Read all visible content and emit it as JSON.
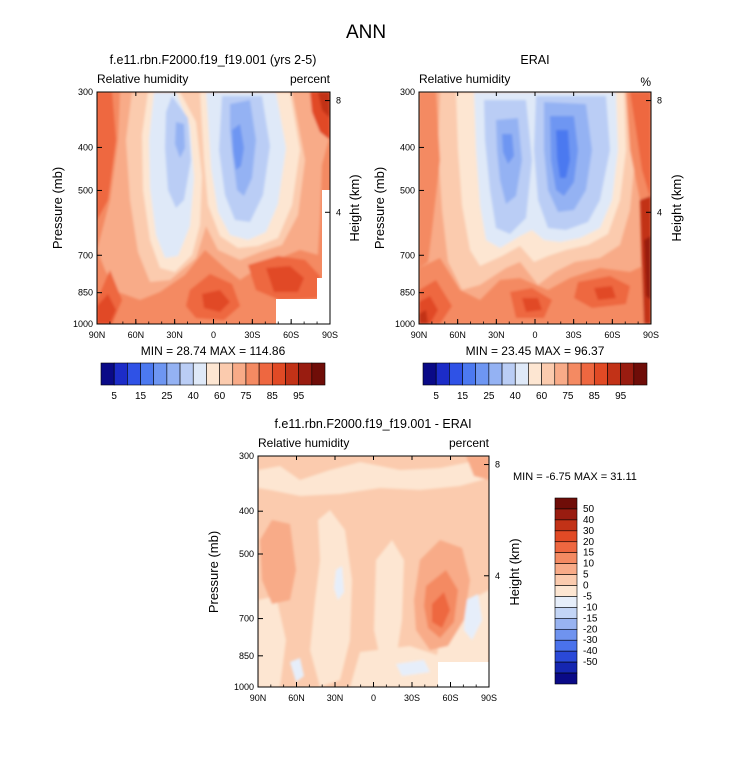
{
  "figure": {
    "title": "ANN"
  },
  "colors": {
    "abs": [
      "#0a0a87",
      "#1c2cc8",
      "#2f52e6",
      "#4c79f0",
      "#6e96f2",
      "#94b2f3",
      "#bacdf5",
      "#dfe9f8",
      "#fde6d2",
      "#fbcbae",
      "#f8ab88",
      "#f48a62",
      "#ee6740",
      "#e14a25",
      "#c23217",
      "#991c10",
      "#6f0d08"
    ],
    "diff": [
      "#0a0a87",
      "#1526b0",
      "#2a49d8",
      "#4a72ec",
      "#6f93ef",
      "#98b3f1",
      "#c3d5f6",
      "#e6eefa",
      "#fde6d2",
      "#fbcbae",
      "#f8ab88",
      "#f48a62",
      "#ee6740",
      "#e14a25",
      "#c23217",
      "#991c10",
      "#6f0d08"
    ]
  },
  "chart_data": [
    {
      "type": "heatmap",
      "title": "f.e11.rbn.F2000.f19_f19.001 (yrs 2-5)",
      "left_label": "Relative humidity",
      "right_label": "percent",
      "xlabel": "",
      "ylabel": "Pressure (mb)",
      "y2label": "Height (km)",
      "x_ticks": [
        "90N",
        "60N",
        "30N",
        "0",
        "30S",
        "60S",
        "90S"
      ],
      "y_ticks": [
        "300",
        "400",
        "500",
        "700",
        "850",
        "1000"
      ],
      "y_tick_values": [
        300,
        400,
        500,
        700,
        850,
        1000
      ],
      "y2_ticks": [
        "8",
        "4"
      ],
      "y2_tick_values": [
        8,
        4
      ],
      "ylim": [
        300,
        1000
      ],
      "xlim": [
        90,
        -90
      ],
      "stats": "MIN = 28.74  MAX = 114.86",
      "min": 28.74,
      "max": 114.86,
      "colorbar": {
        "labels": [
          "5",
          "15",
          "25",
          "40",
          "60",
          "75",
          "85",
          "95"
        ],
        "levels": [
          5,
          10,
          15,
          20,
          25,
          30,
          40,
          50,
          60,
          65,
          70,
          75,
          80,
          85,
          90,
          95
        ]
      }
    },
    {
      "type": "heatmap",
      "title": "ERAI",
      "left_label": "Relative humidity",
      "right_label": "%",
      "xlabel": "",
      "ylabel": "Pressure (mb)",
      "y2label": "Height (km)",
      "x_ticks": [
        "90N",
        "60N",
        "30N",
        "0",
        "30S",
        "60S",
        "90S"
      ],
      "y_ticks": [
        "300",
        "400",
        "500",
        "700",
        "850",
        "1000"
      ],
      "y_tick_values": [
        300,
        400,
        500,
        700,
        850,
        1000
      ],
      "y2_ticks": [
        "8",
        "4"
      ],
      "y2_tick_values": [
        8,
        4
      ],
      "ylim": [
        300,
        1000
      ],
      "xlim": [
        90,
        -90
      ],
      "stats": "MIN = 23.45  MAX = 96.37",
      "min": 23.45,
      "max": 96.37,
      "colorbar": {
        "labels": [
          "5",
          "15",
          "25",
          "40",
          "60",
          "75",
          "85",
          "95"
        ],
        "levels": [
          5,
          10,
          15,
          20,
          25,
          30,
          40,
          50,
          60,
          65,
          70,
          75,
          80,
          85,
          90,
          95
        ]
      }
    },
    {
      "type": "heatmap",
      "title": "f.e11.rbn.F2000.f19_f19.001 - ERAI",
      "left_label": "Relative humidity",
      "right_label": "percent",
      "xlabel": "",
      "ylabel": "Pressure (mb)",
      "y2label": "Height (km)",
      "x_ticks": [
        "90N",
        "60N",
        "30N",
        "0",
        "30S",
        "60S",
        "90S"
      ],
      "y_ticks": [
        "300",
        "400",
        "500",
        "700",
        "850",
        "1000"
      ],
      "y_tick_values": [
        300,
        400,
        500,
        700,
        850,
        1000
      ],
      "y2_ticks": [
        "8",
        "4"
      ],
      "y2_tick_values": [
        8,
        4
      ],
      "ylim": [
        300,
        1000
      ],
      "xlim": [
        90,
        -90
      ],
      "stats": "MIN =  -6.75  MAX = 31.11",
      "min": -6.75,
      "max": 31.11,
      "colorbar": {
        "labels": [
          "50",
          "40",
          "30",
          "20",
          "15",
          "10",
          "5",
          "0",
          "-5",
          "-10",
          "-15",
          "-20",
          "-30",
          "-40",
          "-50"
        ],
        "levels": [
          50,
          40,
          30,
          20,
          15,
          10,
          5,
          0,
          -5,
          -10,
          -15,
          -20,
          -30,
          -40,
          -50
        ]
      }
    }
  ]
}
